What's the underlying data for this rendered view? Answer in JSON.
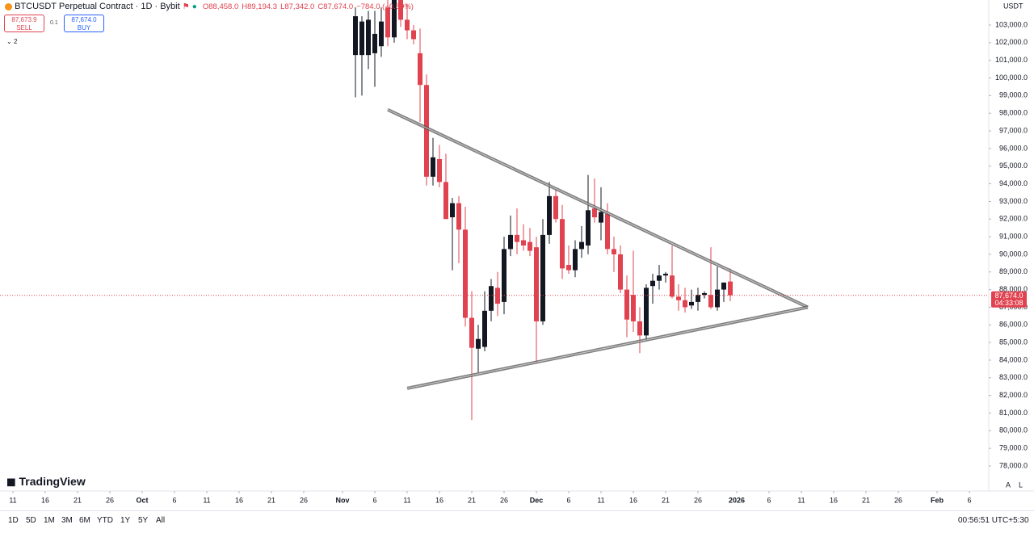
{
  "chart_data": {
    "type": "candlestick",
    "title": "BTCUSDT Perpetual Contract · 1D · Bybit",
    "ohlc_labels": [
      "O88,458.0",
      "H89,194.3",
      "L87,342.0",
      "C87,674.0",
      "−784.0 (−0.89%)"
    ],
    "up_color": "#131722",
    "down_color": "#e0424f",
    "currency": "USDT",
    "x": [
      "2025-11-03",
      "2025-11-04",
      "2025-11-05",
      "2025-11-06",
      "2025-11-07",
      "2025-11-08",
      "2025-11-09",
      "2025-11-10",
      "2025-11-11",
      "2025-11-12",
      "2025-11-13",
      "2025-11-14",
      "2025-11-15",
      "2025-11-16",
      "2025-11-17",
      "2025-11-18",
      "2025-11-19",
      "2025-11-20",
      "2025-11-21",
      "2025-11-22",
      "2025-11-23",
      "2025-11-24",
      "2025-11-25",
      "2025-11-26",
      "2025-11-27",
      "2025-11-28",
      "2025-11-29",
      "2025-11-30",
      "2025-12-01",
      "2025-12-02",
      "2025-12-03",
      "2025-12-04",
      "2025-12-05",
      "2025-12-06",
      "2025-12-07",
      "2025-12-08",
      "2025-12-09",
      "2025-12-10",
      "2025-12-11",
      "2025-12-12",
      "2025-12-13",
      "2025-12-14",
      "2025-12-15",
      "2025-12-16",
      "2025-12-17",
      "2025-12-18",
      "2025-12-19",
      "2025-12-20",
      "2025-12-21",
      "2025-12-22",
      "2025-12-23",
      "2025-12-24",
      "2025-12-25",
      "2025-12-26",
      "2025-12-27",
      "2025-12-28",
      "2025-12-29",
      "2025-12-30",
      "2025-12-31"
    ],
    "open": [
      101300,
      101300,
      101300,
      101400,
      101800,
      104000,
      102300,
      104500,
      103300,
      102700,
      101400,
      99600,
      94400,
      95400,
      94100,
      92100,
      92900,
      91400,
      86400,
      84650,
      84750,
      86800,
      88100,
      87300,
      90300,
      91100,
      90800,
      90700,
      90400,
      86200,
      91100,
      93300,
      92000,
      89400,
      89100,
      90300,
      90500,
      92600,
      91800,
      92300,
      90300,
      90000,
      88000,
      87700,
      86200,
      85400,
      88200,
      88500,
      88800,
      88800,
      87600,
      87400,
      87100,
      87300,
      87700,
      87700,
      87000,
      88000,
      88458
    ],
    "high": [
      104000,
      103500,
      103800,
      103800,
      104000,
      104500,
      104800,
      105000,
      104200,
      103000,
      102800,
      100200,
      96600,
      96200,
      95700,
      93200,
      93300,
      92700,
      87900,
      86000,
      87900,
      88600,
      89000,
      91000,
      92200,
      92600,
      91700,
      91500,
      91000,
      92000,
      94100,
      93700,
      92800,
      90500,
      90800,
      91600,
      94500,
      94300,
      93800,
      92900,
      91000,
      90500,
      88800,
      90200,
      87000,
      88300,
      88900,
      89400,
      89000,
      90500,
      88300,
      88100,
      88000,
      88100,
      87900,
      90400,
      89300,
      88400,
      89194.3
    ],
    "low": [
      98900,
      99000,
      100500,
      99500,
      101200,
      101800,
      102000,
      102900,
      102200,
      101900,
      97500,
      93900,
      93900,
      93800,
      92000,
      89100,
      89500,
      85900,
      80600,
      83300,
      84500,
      86200,
      86500,
      86600,
      89900,
      90000,
      90200,
      89900,
      83800,
      86000,
      90600,
      91800,
      88600,
      88900,
      88700,
      89800,
      90000,
      91800,
      90800,
      90000,
      89000,
      87800,
      85300,
      85600,
      84400,
      85100,
      87200,
      88000,
      88400,
      87500,
      86800,
      86700,
      86900,
      86800,
      87500,
      86900,
      86800,
      87300,
      87342
    ],
    "close": [
      103500,
      103200,
      103300,
      102500,
      103200,
      102300,
      104500,
      103300,
      102700,
      102200,
      99600,
      94400,
      95500,
      94100,
      92000,
      92900,
      91400,
      86400,
      84700,
      85200,
      86800,
      88200,
      87200,
      90300,
      91100,
      90700,
      90500,
      90200,
      86200,
      91100,
      93300,
      92000,
      89200,
      89100,
      90300,
      90700,
      92500,
      92100,
      92400,
      90300,
      90000,
      88000,
      86300,
      86200,
      85400,
      88100,
      88500,
      88800,
      88900,
      87600,
      87400,
      87000,
      87300,
      87700,
      87800,
      87000,
      88000,
      88400,
      87674
    ],
    "last_price": 87674,
    "last_price_label": "87,674.0",
    "countdown": "04:33:08",
    "trendlines": [
      {
        "x": [
          "2025-11-08",
          "2026-01-12"
        ],
        "y": [
          98200,
          87000
        ]
      },
      {
        "x": [
          "2025-11-11",
          "2026-01-12"
        ],
        "y": [
          82400,
          87000
        ]
      }
    ],
    "xlim": [
      "2025-09-09",
      "2026-02-09"
    ],
    "ylim": [
      76580,
      104420
    ],
    "xticks": [
      {
        "value": "2025-09-11",
        "label": "11"
      },
      {
        "value": "2025-09-16",
        "label": "16"
      },
      {
        "value": "2025-09-21",
        "label": "21"
      },
      {
        "value": "2025-09-26",
        "label": "26"
      },
      {
        "value": "2025-10-01",
        "label": "Oct"
      },
      {
        "value": "2025-10-06",
        "label": "6"
      },
      {
        "value": "2025-10-11",
        "label": "11"
      },
      {
        "value": "2025-10-16",
        "label": "16"
      },
      {
        "value": "2025-10-21",
        "label": "21"
      },
      {
        "value": "2025-10-26",
        "label": "26"
      },
      {
        "value": "2025-11-01",
        "label": "Nov"
      },
      {
        "value": "2025-11-06",
        "label": "6"
      },
      {
        "value": "2025-11-11",
        "label": "11"
      },
      {
        "value": "2025-11-16",
        "label": "16"
      },
      {
        "value": "2025-11-21",
        "label": "21"
      },
      {
        "value": "2025-11-26",
        "label": "26"
      },
      {
        "value": "2025-12-01",
        "label": "Dec"
      },
      {
        "value": "2025-12-06",
        "label": "6"
      },
      {
        "value": "2025-12-11",
        "label": "11"
      },
      {
        "value": "2025-12-16",
        "label": "16"
      },
      {
        "value": "2025-12-21",
        "label": "21"
      },
      {
        "value": "2025-12-26",
        "label": "26"
      },
      {
        "value": "2026-01-01",
        "label": "2026"
      },
      {
        "value": "2026-01-06",
        "label": "6"
      },
      {
        "value": "2026-01-11",
        "label": "11"
      },
      {
        "value": "2026-01-16",
        "label": "16"
      },
      {
        "value": "2026-01-21",
        "label": "21"
      },
      {
        "value": "2026-01-26",
        "label": "26"
      },
      {
        "value": "2026-02-01",
        "label": "Feb"
      },
      {
        "value": "2026-02-06",
        "label": "6"
      }
    ],
    "yticks": [
      {
        "value": 78000,
        "label": "78,000.0"
      },
      {
        "value": 79000,
        "label": "79,000.0"
      },
      {
        "value": 80000,
        "label": "80,000.0"
      },
      {
        "value": 81000,
        "label": "81,000.0"
      },
      {
        "value": 82000,
        "label": "82,000.0"
      },
      {
        "value": 83000,
        "label": "83,000.0"
      },
      {
        "value": 84000,
        "label": "84,000.0"
      },
      {
        "value": 85000,
        "label": "85,000.0"
      },
      {
        "value": 86000,
        "label": "86,000.0"
      },
      {
        "value": 87000,
        "label": "87,000.0"
      },
      {
        "value": 88000,
        "label": "88,000.0"
      },
      {
        "value": 89000,
        "label": "89,000.0"
      },
      {
        "value": 90000,
        "label": "90,000.0"
      },
      {
        "value": 91000,
        "label": "91,000.0"
      },
      {
        "value": 92000,
        "label": "92,000.0"
      },
      {
        "value": 93000,
        "label": "93,000.0"
      },
      {
        "value": 94000,
        "label": "94,000.0"
      },
      {
        "value": 95000,
        "label": "95,000.0"
      },
      {
        "value": 96000,
        "label": "96,000.0"
      },
      {
        "value": 97000,
        "label": "97,000.0"
      },
      {
        "value": 98000,
        "label": "98,000.0"
      },
      {
        "value": 99000,
        "label": "99,000.0"
      },
      {
        "value": 100000,
        "label": "100,000.0"
      },
      {
        "value": 101000,
        "label": "101,000.0"
      },
      {
        "value": 102000,
        "label": "102,000.0"
      },
      {
        "value": 103000,
        "label": "103,000.0"
      }
    ]
  },
  "toolbar": {
    "sell_price": "87,673.9",
    "sell": "SELL",
    "quantity": "0.1",
    "buy_price": "87,674.0",
    "buy": "BUY",
    "indicators": "2",
    "brand": "TradingView",
    "ranges": [
      "1D",
      "5D",
      "1M",
      "3M",
      "6M",
      "YTD",
      "1Y",
      "5Y",
      "All"
    ],
    "clock": "00:56:51 UTC+5:30",
    "auto": "A",
    "log": "L"
  }
}
